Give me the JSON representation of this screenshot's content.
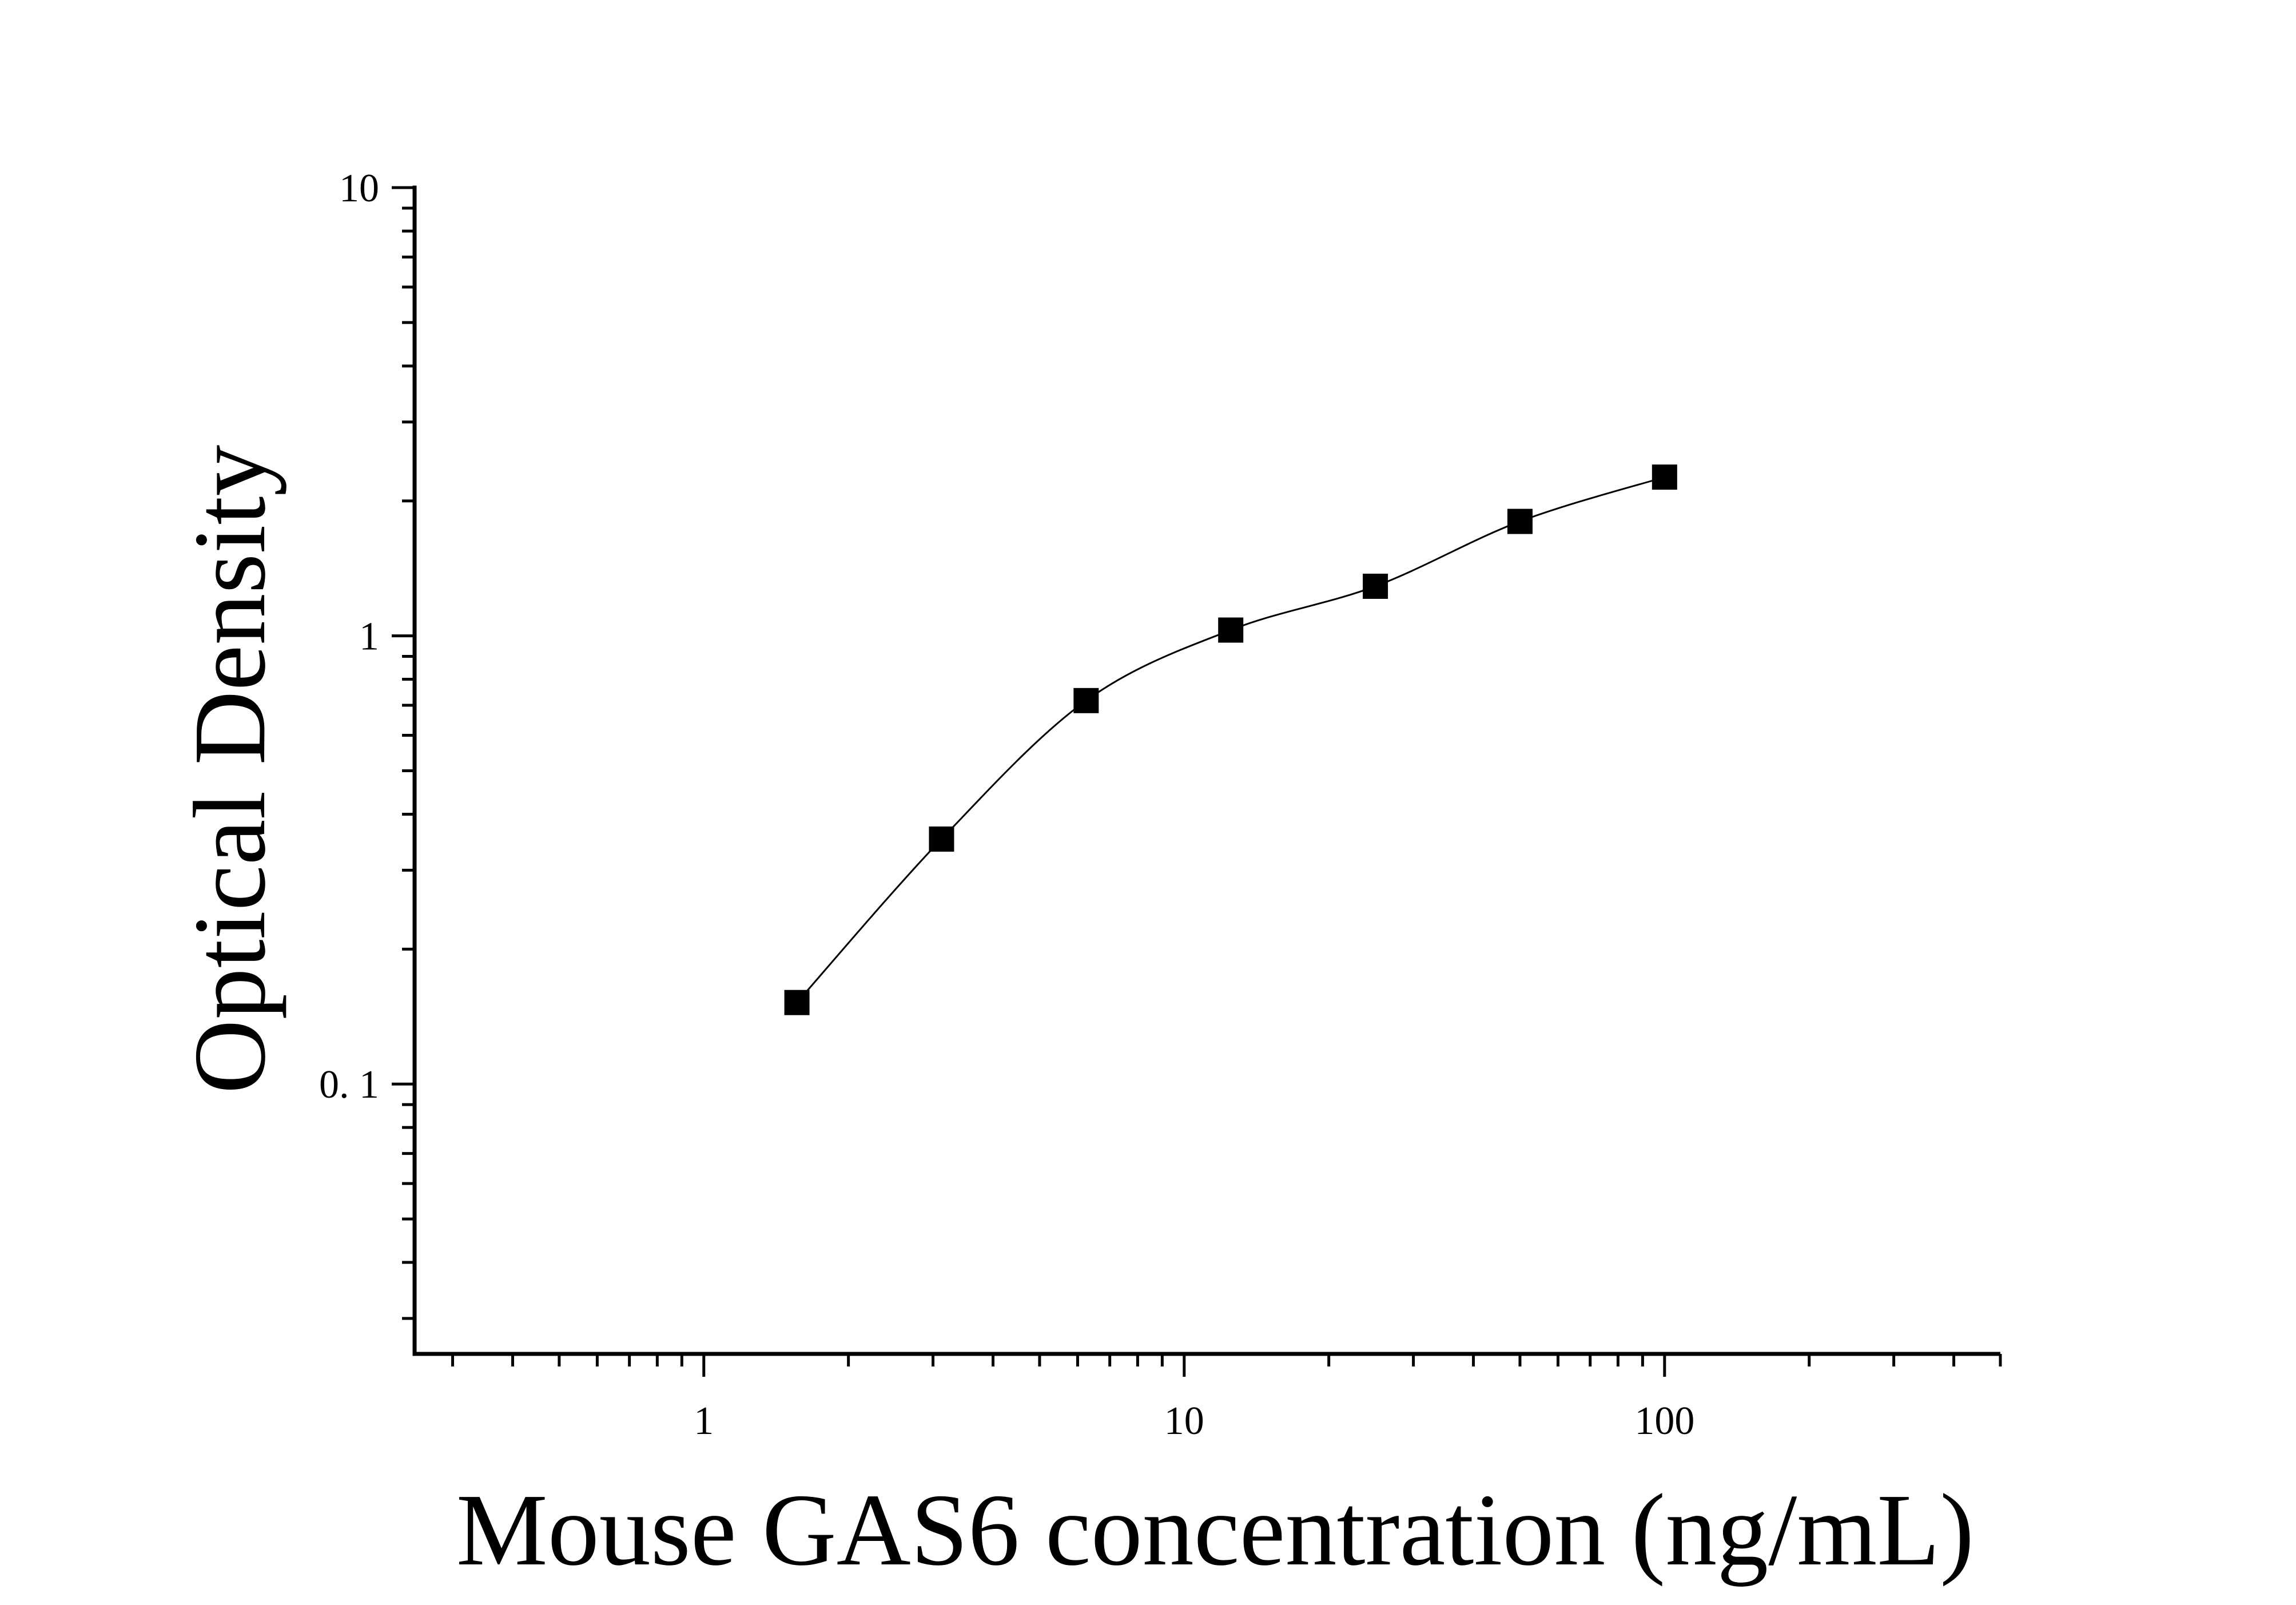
{
  "chart_data": {
    "type": "scatter",
    "title": "",
    "xlabel": "Mouse GAS6 concentration (ng/mL)",
    "ylabel": "Optical Density",
    "x_scale": "log",
    "y_scale": "log",
    "xlim": [
      0.25,
      500
    ],
    "ylim": [
      0.025,
      10
    ],
    "x_tick_labels": [
      {
        "value": 1,
        "label": "1"
      },
      {
        "value": 10,
        "label": "10"
      },
      {
        "value": 100,
        "label": "100"
      }
    ],
    "y_tick_labels": [
      {
        "value": 0.1,
        "label": "0. 1"
      },
      {
        "value": 1,
        "label": "1"
      },
      {
        "value": 10,
        "label": "10"
      }
    ],
    "grid": false,
    "legend": "none",
    "series": [
      {
        "marker": "square",
        "points": [
          {
            "x": 1.5625,
            "y": 0.152
          },
          {
            "x": 3.125,
            "y": 0.352
          },
          {
            "x": 6.25,
            "y": 0.717
          },
          {
            "x": 12.5,
            "y": 1.03
          },
          {
            "x": 25,
            "y": 1.29
          },
          {
            "x": 50,
            "y": 1.8
          },
          {
            "x": 100,
            "y": 2.26
          }
        ]
      }
    ],
    "fit_curve": true,
    "colors": {
      "marker": "#000000",
      "axis": "#000000",
      "curve": "#000000"
    }
  }
}
